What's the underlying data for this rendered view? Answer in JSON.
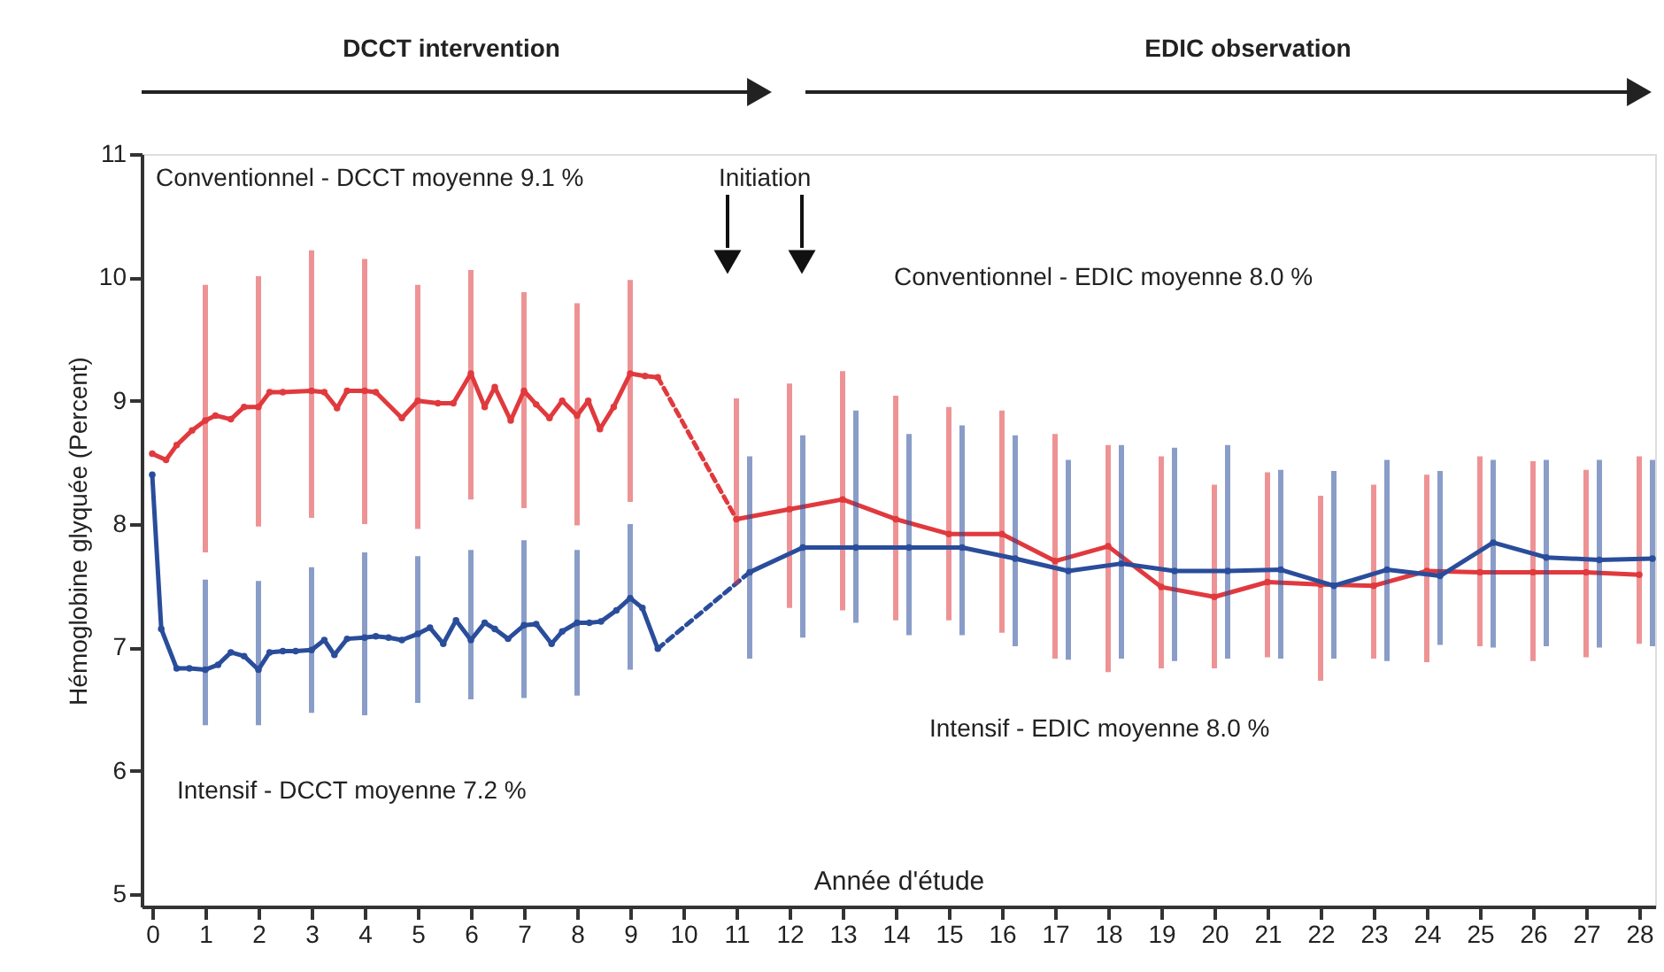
{
  "chart_data": {
    "type": "line",
    "ylabel": "Hémoglobine glyquée (Percent)",
    "xlabel": "Année d'étude",
    "annotations": [
      "DCCT intervention",
      "EDIC observation",
      "Conventionnel - DCCT moyenne 9.1 %",
      "Initiation",
      "Conventionnel - EDIC moyenne 8.0 %",
      "Intensif - DCCT moyenne 7.2 %",
      "Intensif - EDIC moyenne 8.0 %"
    ],
    "xlim": [
      -0.2,
      28.3
    ],
    "xticks": [
      0,
      1,
      2,
      3,
      4,
      5,
      6,
      7,
      8,
      9,
      10,
      11,
      12,
      13,
      14,
      15,
      16,
      17,
      18,
      19,
      20,
      21,
      22,
      23,
      24,
      25,
      26,
      27,
      28
    ],
    "ylim": [
      4.9,
      11
    ],
    "yticks": [
      5,
      6,
      7,
      8,
      9,
      10,
      11
    ],
    "grid": false,
    "marker": "circle",
    "line_style": "solid",
    "series": [
      {
        "color": "#e03a3e",
        "x": [
          0,
          0.26,
          0.46,
          0.75,
          1,
          1.19,
          1.48,
          1.73,
          2,
          2.21,
          2.46,
          3,
          3.24,
          3.48,
          3.67,
          4,
          4.21,
          4.7,
          5,
          5.38,
          5.67,
          6,
          6.26,
          6.45,
          6.75,
          7,
          7.23,
          7.48,
          7.72,
          8,
          8.21,
          8.43,
          8.69,
          9,
          9.28,
          9.52
        ],
        "values": [
          8.57,
          8.52,
          8.64,
          8.76,
          8.84,
          8.88,
          8.85,
          8.95,
          8.95,
          9.07,
          9.07,
          9.08,
          9.07,
          8.94,
          9.08,
          9.08,
          9.07,
          8.86,
          9.0,
          8.98,
          8.98,
          9.22,
          8.95,
          9.11,
          8.84,
          9.08,
          8.97,
          8.86,
          9.0,
          8.88,
          9.0,
          8.77,
          8.95,
          9.22,
          9.2,
          9.19
        ],
        "errors": [
          null,
          null,
          null,
          null,
          [
            7.77,
            9.94
          ],
          null,
          null,
          null,
          [
            7.98,
            10.01
          ],
          null,
          null,
          [
            8.05,
            10.22
          ],
          null,
          null,
          null,
          [
            8.0,
            10.15
          ],
          null,
          null,
          [
            7.96,
            9.94
          ],
          null,
          null,
          [
            8.2,
            10.06
          ],
          null,
          null,
          null,
          [
            8.13,
            9.88
          ],
          null,
          null,
          null,
          [
            7.99,
            9.79
          ],
          null,
          null,
          null,
          [
            8.18,
            9.98
          ],
          null,
          null
        ]
      },
      {
        "color": "#2a4d9b",
        "x": [
          0,
          0.17,
          0.46,
          0.7,
          1,
          1.24,
          1.48,
          1.73,
          2,
          2.21,
          2.46,
          2.7,
          3,
          3.24,
          3.43,
          3.67,
          4,
          4.21,
          4.45,
          4.7,
          5,
          5.23,
          5.48,
          5.72,
          6,
          6.26,
          6.45,
          6.7,
          7,
          7.23,
          7.52,
          7.72,
          8,
          8.23,
          8.45,
          8.74,
          9,
          9.23,
          9.52
        ],
        "values": [
          8.4,
          7.15,
          6.83,
          6.83,
          6.82,
          6.86,
          6.96,
          6.93,
          6.82,
          6.96,
          6.97,
          6.97,
          6.98,
          7.06,
          6.94,
          7.07,
          7.08,
          7.09,
          7.08,
          7.06,
          7.11,
          7.16,
          7.03,
          7.22,
          7.06,
          7.2,
          7.15,
          7.07,
          7.18,
          7.19,
          7.03,
          7.13,
          7.2,
          7.2,
          7.21,
          7.3,
          7.4,
          7.32,
          6.99
        ],
        "errors": [
          null,
          null,
          null,
          null,
          [
            6.37,
            7.55
          ],
          null,
          null,
          null,
          [
            6.37,
            7.54
          ],
          null,
          null,
          null,
          [
            6.47,
            7.65
          ],
          null,
          null,
          null,
          [
            6.45,
            7.77
          ],
          null,
          null,
          null,
          [
            6.55,
            7.74
          ],
          null,
          null,
          null,
          [
            6.58,
            7.79
          ],
          null,
          null,
          null,
          [
            6.59,
            7.87
          ],
          null,
          null,
          null,
          [
            6.61,
            7.79
          ],
          null,
          null,
          null,
          [
            6.82,
            8.0
          ],
          null,
          null
        ]
      },
      {
        "color": "#e03a3e",
        "x": [
          9.52,
          11
        ],
        "values": [
          9.19,
          8.04
        ],
        "line_style": "dashed",
        "marker": "none"
      },
      {
        "color": "#2a4d9b",
        "x": [
          9.52,
          11.25
        ],
        "values": [
          6.99,
          7.61
        ],
        "line_style": "dashed",
        "marker": "none"
      },
      {
        "color": "#e03a3e",
        "x": [
          11,
          12,
          13,
          14,
          15,
          16,
          17,
          18,
          19,
          20,
          21,
          22,
          23,
          24,
          25,
          26,
          27,
          28
        ],
        "values": [
          8.04,
          8.12,
          8.2,
          8.04,
          7.92,
          7.92,
          7.7,
          7.82,
          7.49,
          7.41,
          7.53,
          7.51,
          7.5,
          7.62,
          7.61,
          7.61,
          7.61,
          7.59
        ],
        "errors": [
          [
            7.51,
            9.02
          ],
          [
            7.32,
            9.14
          ],
          [
            7.3,
            9.24
          ],
          [
            7.22,
            9.04
          ],
          [
            7.22,
            8.95
          ],
          [
            7.12,
            8.92
          ],
          [
            6.91,
            8.73
          ],
          [
            6.8,
            8.64
          ],
          [
            6.83,
            8.55
          ],
          [
            6.83,
            8.32
          ],
          [
            6.92,
            8.42
          ],
          [
            6.73,
            8.23
          ],
          [
            6.91,
            8.32
          ],
          [
            6.88,
            8.4
          ],
          [
            7.01,
            8.55
          ],
          [
            6.89,
            8.51
          ],
          [
            6.92,
            8.44
          ],
          [
            7.03,
            8.55
          ]
        ]
      },
      {
        "color": "#2a4d9b",
        "x": [
          11.25,
          12.25,
          13.25,
          14.25,
          15.25,
          16.25,
          17.25,
          18.25,
          19.25,
          20.25,
          21.25,
          22.25,
          23.25,
          24.25,
          25.25,
          26.25,
          27.25,
          28.25
        ],
        "values": [
          7.61,
          7.81,
          7.81,
          7.81,
          7.81,
          7.72,
          7.62,
          7.68,
          7.62,
          7.62,
          7.63,
          7.5,
          7.63,
          7.58,
          7.85,
          7.73,
          7.71,
          7.72
        ],
        "errors": [
          [
            6.91,
            8.55
          ],
          [
            7.08,
            8.72
          ],
          [
            7.2,
            8.92
          ],
          [
            7.1,
            8.73
          ],
          [
            7.1,
            8.8
          ],
          [
            7.01,
            8.72
          ],
          [
            6.9,
            8.52
          ],
          [
            6.91,
            8.64
          ],
          [
            6.89,
            8.62
          ],
          [
            6.91,
            8.64
          ],
          [
            6.91,
            8.44
          ],
          [
            6.91,
            8.43
          ],
          [
            6.89,
            8.52
          ],
          [
            7.02,
            8.43
          ],
          [
            7.0,
            8.52
          ],
          [
            7.01,
            8.52
          ],
          [
            7.0,
            8.52
          ],
          [
            7.01,
            8.52
          ]
        ]
      }
    ]
  }
}
